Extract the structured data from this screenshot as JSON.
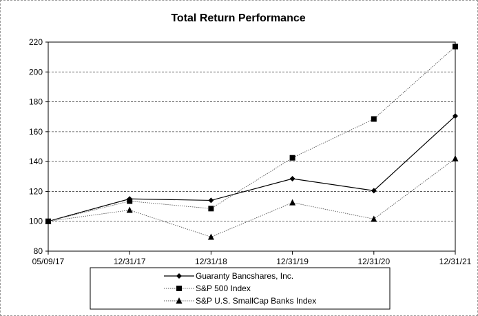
{
  "chart_data": {
    "type": "line",
    "title": "Total Return Performance",
    "xlabel": "",
    "ylabel": "",
    "categories": [
      "05/09/17",
      "12/31/17",
      "12/31/18",
      "12/31/19",
      "12/31/20",
      "12/31/21"
    ],
    "yticks": [
      "80",
      "100",
      "120",
      "140",
      "160",
      "180",
      "200",
      "220"
    ],
    "ylim": [
      80,
      220
    ],
    "grid": "horizontal dashed",
    "legend_position": "bottom",
    "series": [
      {
        "name": "Guaranty Bancshares, Inc.",
        "values": [
          100,
          115,
          114,
          128.5,
          120.5,
          170.5
        ],
        "marker": "diamond",
        "line": "solid",
        "color": "#000000"
      },
      {
        "name": "S&P 500 Index",
        "values": [
          100,
          113.5,
          108.5,
          142.5,
          168.5,
          217
        ],
        "marker": "square",
        "line": "dotted",
        "color": "#000000"
      },
      {
        "name": "S&P U.S. SmallCap Banks Index",
        "values": [
          100,
          107.5,
          89.5,
          112.5,
          101.5,
          142
        ],
        "marker": "triangle",
        "line": "dotted",
        "color": "#000000"
      }
    ]
  }
}
